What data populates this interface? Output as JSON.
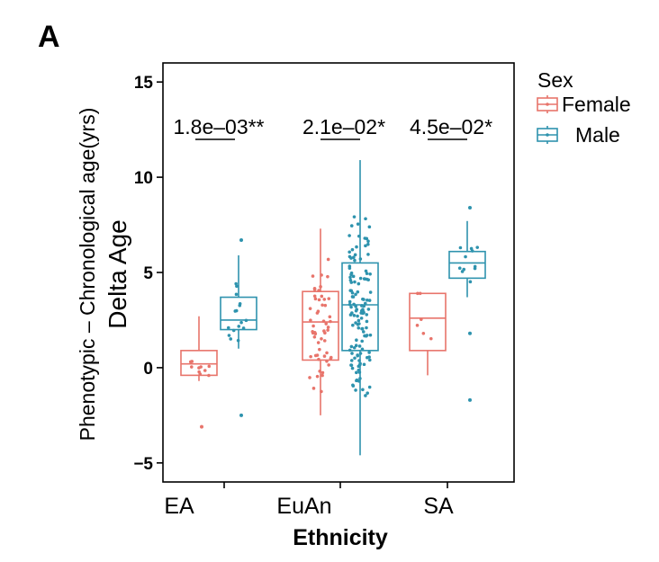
{
  "panel_label": "A",
  "chart_data": {
    "type": "box",
    "xlabel": "Ethnicity",
    "ylabel_line1": "Phenotypic – Chronological age(yrs)",
    "ylabel_line2": "Delta Age",
    "ylim": [
      -6.0,
      16.0
    ],
    "yticks": [
      -5,
      0,
      5,
      10,
      15
    ],
    "ytick_labels": [
      "−5",
      "0",
      "5",
      "10",
      "15"
    ],
    "categories": [
      "EA",
      "EuAn",
      "SA"
    ],
    "legend": {
      "title": "Sex",
      "position": "right",
      "entries": [
        "Female",
        "Male"
      ]
    },
    "colors": {
      "Female": "#e8746b",
      "Male": "#2e93ae"
    },
    "grid": false,
    "series": [
      {
        "name": "Female",
        "boxes": [
          {
            "category": "EA",
            "min": -0.7,
            "q1": -0.4,
            "median": 0.2,
            "q3": 0.9,
            "max": 2.7
          },
          {
            "category": "EuAn",
            "min": -2.5,
            "q1": 0.4,
            "median": 2.4,
            "q3": 4.0,
            "max": 7.3
          },
          {
            "category": "SA",
            "min": -0.4,
            "q1": 0.9,
            "median": 2.6,
            "q3": 3.9,
            "max": 3.9
          }
        ]
      },
      {
        "name": "Male",
        "boxes": [
          {
            "category": "EA",
            "min": 1.0,
            "q1": 2.0,
            "median": 2.5,
            "q3": 3.7,
            "max": 5.9
          },
          {
            "category": "EuAn",
            "min": -4.6,
            "q1": 0.9,
            "median": 3.3,
            "q3": 5.5,
            "max": 10.9
          },
          {
            "category": "SA",
            "min": 3.7,
            "q1": 4.7,
            "median": 5.5,
            "q3": 6.1,
            "max": 7.7
          }
        ]
      }
    ],
    "outliers": [
      {
        "series": "Female",
        "category": "EA",
        "y": -3.1
      },
      {
        "series": "Male",
        "category": "EA",
        "y": -2.5
      },
      {
        "series": "Male",
        "category": "EA",
        "y": 6.7
      },
      {
        "series": "Male",
        "category": "SA",
        "y": 8.4
      },
      {
        "series": "Male",
        "category": "SA",
        "y": 1.8
      },
      {
        "series": "Male",
        "category": "SA",
        "y": -1.7
      }
    ],
    "annotations": [
      {
        "category": "EA",
        "text": "1.8e–03**"
      },
      {
        "category": "EuAn",
        "text": "2.1e–02*"
      },
      {
        "category": "SA",
        "text": "4.5e–02*"
      }
    ]
  }
}
